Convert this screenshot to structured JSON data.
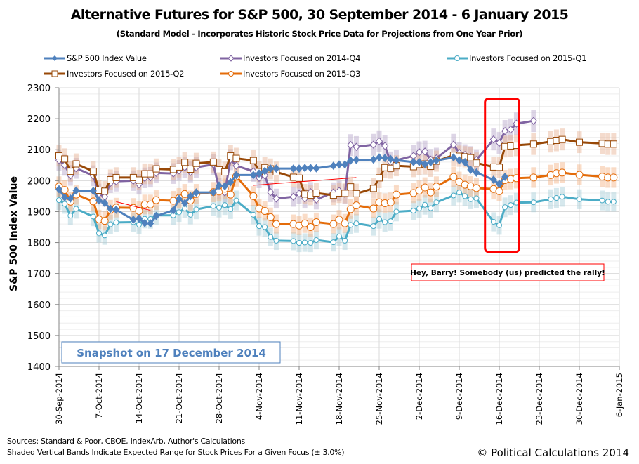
{
  "chart_data": {
    "type": "line",
    "title": "Alternative Futures for S&P 500, 30 September 2014 - 6 January 2015",
    "subtitle": "(Standard Model - Incorporates Historic Stock Price Data for Projections from One Year Prior)",
    "xlabel": "",
    "ylabel": "S&P 500 Index Value",
    "ylim": [
      1400,
      2300
    ],
    "yticks": [
      1400,
      1500,
      1600,
      1700,
      1800,
      1900,
      2000,
      2100,
      2200,
      2300
    ],
    "xlim_days": [
      0,
      98
    ],
    "xtick_labels": [
      "30-Sep-2014",
      "7-Oct-2014",
      "14-Oct-2014",
      "21-Oct-2014",
      "28-Oct-2014",
      "4-Nov-2014",
      "11-Nov-2014",
      "18-Nov-2014",
      "25-Nov-2014",
      "2-Dec-2014",
      "9-Dec-2014",
      "16-Dec-2014",
      "23-Dec-2014",
      "30-Dec-2014",
      "6-Jan-2015"
    ],
    "grid": true,
    "band_pct": 3.0,
    "legend_position": "top",
    "series": [
      {
        "name": "S&P 500 Index Value",
        "color": "#4F81BD",
        "marker": "diamond-filled",
        "days": [
          0,
          1,
          2,
          3,
          6,
          7,
          8,
          9,
          10,
          13,
          14,
          15,
          16,
          17,
          20,
          21,
          22,
          23,
          24,
          27,
          28,
          29,
          30,
          31,
          34,
          35,
          36,
          37,
          38,
          41,
          42,
          43,
          44,
          45,
          48,
          49,
          50,
          51,
          52,
          55,
          56,
          57,
          58,
          59,
          62,
          63,
          64,
          65,
          66,
          69,
          70,
          71,
          72,
          73,
          76,
          77,
          78
        ],
        "values": [
          1972,
          1946,
          1942,
          1968,
          1967,
          1936,
          1928,
          1909,
          1906,
          1874,
          1878,
          1863,
          1862,
          1886,
          1904,
          1941,
          1927,
          1950,
          1962,
          1962,
          1984,
          1982,
          1995,
          2018,
          2018,
          2023,
          2031,
          2039,
          2039,
          2039,
          2039,
          2041,
          2041,
          2040,
          2048,
          2052,
          2052,
          2065,
          2067,
          2068,
          2075,
          2073,
          2070,
          2066,
          2060,
          2060,
          2053,
          2059,
          2065,
          2075,
          2066,
          2060,
          2035,
          2026,
          2003,
          1989,
          2012
        ]
      },
      {
        "name": "Investors Focused on 2014-Q4",
        "color": "#8064A2",
        "marker": "diamond-open",
        "days": [
          0,
          1,
          2,
          3,
          6,
          7,
          8,
          9,
          10,
          13,
          14,
          15,
          16,
          17,
          20,
          21,
          22,
          23,
          24,
          27,
          28,
          29,
          30,
          31,
          34,
          35,
          36,
          37,
          38,
          41,
          42,
          43,
          44,
          45,
          48,
          49,
          50,
          51,
          52,
          55,
          56,
          57,
          58,
          59,
          62,
          63,
          64,
          65,
          66,
          69,
          70,
          71,
          72,
          73,
          76,
          77,
          78,
          79,
          80,
          83
        ],
        "values": [
          2066,
          2050,
          2017,
          2040,
          2016,
          1958,
          1948,
          1993,
          1998,
          2000,
          1988,
          2009,
          2011,
          2025,
          2023,
          2033,
          2043,
          2028,
          2043,
          2052,
          1975,
          1962,
          2068,
          2048,
          2030,
          2009,
          2017,
          1963,
          1942,
          1948,
          1958,
          1942,
          1963,
          1939,
          1962,
          1967,
          1957,
          2115,
          2109,
          2116,
          2127,
          2112,
          2060,
          2066,
          2080,
          2092,
          2094,
          2068,
          2072,
          2116,
          2090,
          2083,
          2077,
          2067,
          2133,
          2122,
          2160,
          2165,
          2184,
          2193
        ]
      },
      {
        "name": "Investors Focused on 2015-Q1",
        "color": "#4BACC6",
        "marker": "circle-open",
        "days": [
          0,
          1,
          2,
          3,
          6,
          7,
          8,
          9,
          10,
          13,
          14,
          15,
          16,
          17,
          20,
          21,
          22,
          23,
          24,
          27,
          28,
          29,
          30,
          31,
          34,
          35,
          36,
          37,
          38,
          41,
          42,
          43,
          44,
          45,
          48,
          49,
          50,
          51,
          52,
          55,
          56,
          57,
          58,
          59,
          62,
          63,
          64,
          65,
          66,
          69,
          70,
          71,
          72,
          73,
          76,
          77,
          78,
          79,
          80,
          83,
          86,
          87,
          88,
          91,
          95,
          96,
          97
        ],
        "values": [
          1937,
          1925,
          1887,
          1909,
          1884,
          1830,
          1823,
          1859,
          1865,
          1866,
          1858,
          1877,
          1876,
          1888,
          1888,
          1898,
          1910,
          1890,
          1907,
          1918,
          1913,
          1921,
          1908,
          1936,
          1890,
          1853,
          1850,
          1818,
          1806,
          1805,
          1799,
          1800,
          1799,
          1808,
          1801,
          1820,
          1806,
          1857,
          1862,
          1853,
          1876,
          1866,
          1869,
          1900,
          1903,
          1910,
          1922,
          1911,
          1930,
          1952,
          1962,
          1950,
          1940,
          1943,
          1867,
          1856,
          1914,
          1921,
          1929,
          1930,
          1940,
          1944,
          1948,
          1940,
          1936,
          1932,
          1932
        ]
      },
      {
        "name": "Investors Focused on 2015-Q2",
        "color": "#984807",
        "marker": "square-open",
        "days": [
          0,
          1,
          2,
          3,
          6,
          7,
          8,
          9,
          10,
          13,
          14,
          15,
          16,
          17,
          20,
          21,
          22,
          23,
          24,
          27,
          28,
          29,
          30,
          31,
          34,
          35,
          36,
          37,
          38,
          41,
          42,
          43,
          44,
          45,
          48,
          49,
          50,
          51,
          52,
          55,
          56,
          57,
          58,
          59,
          62,
          63,
          64,
          65,
          66,
          69,
          70,
          71,
          72,
          73,
          76,
          77,
          78,
          79,
          80,
          83,
          86,
          87,
          88,
          91,
          95,
          96,
          97
        ],
        "values": [
          2080,
          2070,
          2030,
          2054,
          2030,
          1969,
          1966,
          2003,
          2010,
          2010,
          2002,
          2022,
          2022,
          2038,
          2036,
          2044,
          2059,
          2037,
          2056,
          2060,
          2035,
          2028,
          2080,
          2072,
          2065,
          2029,
          2042,
          2038,
          2028,
          2011,
          2008,
          1957,
          1953,
          1960,
          1953,
          1960,
          1959,
          1980,
          1958,
          1975,
          2009,
          2042,
          2040,
          2048,
          2045,
          2052,
          2054,
          2046,
          2063,
          2082,
          2079,
          2077,
          2074,
          2057,
          2044,
          2043,
          2110,
          2112,
          2114,
          2118,
          2126,
          2130,
          2133,
          2124,
          2120,
          2118,
          2118
        ]
      },
      {
        "name": "Investors Focused on 2015-Q3",
        "color": "#E46C0A",
        "marker": "circle-open",
        "days": [
          0,
          1,
          2,
          3,
          6,
          7,
          8,
          9,
          10,
          13,
          14,
          15,
          16,
          17,
          20,
          21,
          22,
          23,
          24,
          27,
          28,
          29,
          30,
          31,
          34,
          35,
          36,
          37,
          38,
          41,
          42,
          43,
          44,
          45,
          48,
          49,
          50,
          51,
          52,
          55,
          56,
          57,
          58,
          59,
          62,
          63,
          64,
          65,
          66,
          69,
          70,
          71,
          72,
          73,
          76,
          77,
          78,
          79,
          80,
          83,
          86,
          87,
          88,
          91,
          95,
          96,
          97
        ],
        "values": [
          1981,
          1970,
          1932,
          1955,
          1933,
          1875,
          1870,
          1906,
          1913,
          1912,
          1902,
          1923,
          1923,
          1937,
          1935,
          1944,
          1957,
          1936,
          1957,
          1963,
          1965,
          1974,
          1955,
          2014,
          1950,
          1910,
          1902,
          1882,
          1860,
          1860,
          1855,
          1862,
          1850,
          1866,
          1860,
          1874,
          1862,
          1908,
          1920,
          1910,
          1930,
          1927,
          1930,
          1955,
          1960,
          1968,
          1978,
          1962,
          1981,
          2012,
          1996,
          1987,
          1982,
          1976,
          1973,
          1966,
          2002,
          2005,
          2008,
          2010,
          2018,
          2024,
          2026,
          2019,
          2013,
          2010,
          2010
        ]
      }
    ],
    "annotations": [
      {
        "text": "Hey, Barry!  Somebody (us) predicted the rally!",
        "style": "red-bordered-box"
      },
      {
        "text": "Snapshot on 17 December 2014",
        "style": "blue-bordered-box"
      },
      {
        "text": "",
        "style": "red-rounded-highlight",
        "range_days": [
          75,
          80
        ],
        "range_values": [
          1770,
          2265
        ]
      }
    ]
  },
  "legend": {
    "items": [
      {
        "label": "S&P 500 Index Value"
      },
      {
        "label": "Investors Focused on 2014-Q4"
      },
      {
        "label": "Investors Focused on 2015-Q1"
      },
      {
        "label": "Investors Focused on 2015-Q2"
      },
      {
        "label": "Investors Focused on 2015-Q3"
      }
    ]
  },
  "footer": {
    "sources": "Sources: Standard & Poor, CBOE, IndexArb, Author's Calculations",
    "note": "Shaded Vertical Bands Indicate Expected Range for Stock Prices For a Given Focus (± 3.0%)",
    "copyright": "© Political Calculations 2014"
  }
}
